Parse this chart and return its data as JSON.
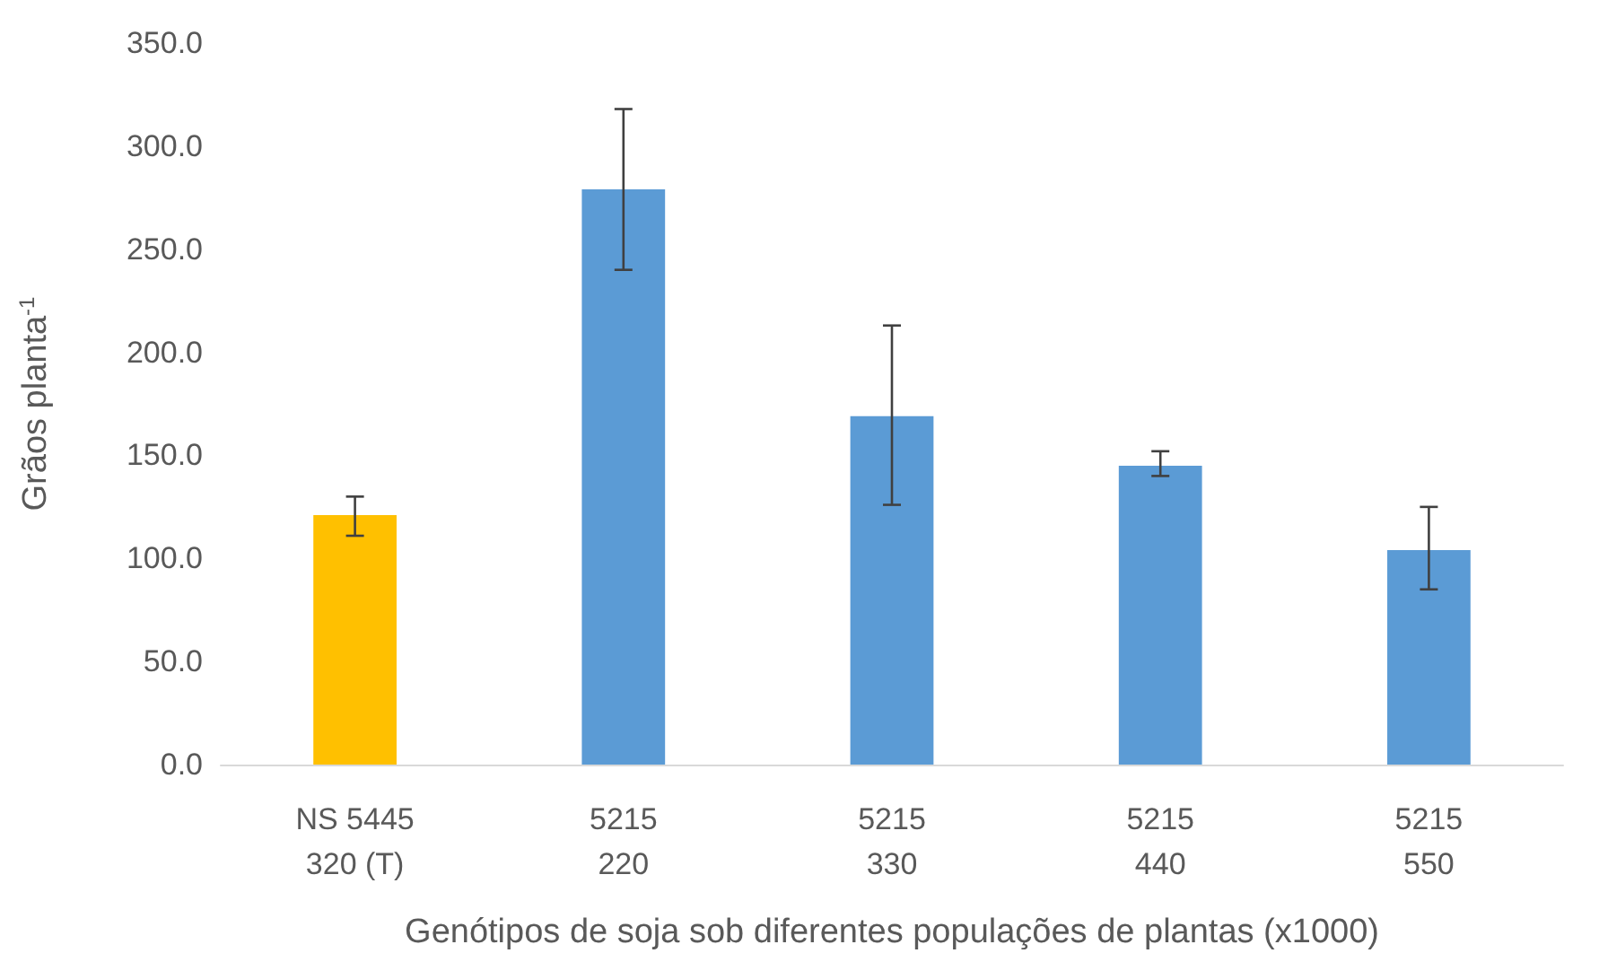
{
  "chart_data": {
    "type": "bar",
    "xlabel": "Genótipos de soja sob diferentes populações de plantas (x1000)",
    "ylabel": "Grãos planta$^{-1}$",
    "categories": [
      "NS 5445\n320 (T)",
      "5215\n220",
      "5215\n330",
      "5215\n440",
      "5215\n550"
    ],
    "values": [
      121,
      279,
      169,
      145,
      104
    ],
    "colors": [
      "#ffc000",
      "#5b9bd5",
      "#5b9bd5",
      "#5b9bd5",
      "#5b9bd5"
    ],
    "errors": [
      [
        111,
        130
      ],
      [
        240,
        318
      ],
      [
        126,
        213
      ],
      [
        140,
        152
      ],
      [
        85,
        125
      ]
    ],
    "ylim": [
      0,
      350
    ],
    "yticks": [
      {
        "value": 0,
        "label": "0.0"
      },
      {
        "value": 50,
        "label": "50.0"
      },
      {
        "value": 100,
        "label": "100.0"
      },
      {
        "value": 150,
        "label": "150.0"
      },
      {
        "value": 200,
        "label": "200.0"
      },
      {
        "value": 250,
        "label": "250.0"
      },
      {
        "value": 300,
        "label": "300.0"
      },
      {
        "value": 350,
        "label": "350.0"
      }
    ],
    "grid": false
  }
}
